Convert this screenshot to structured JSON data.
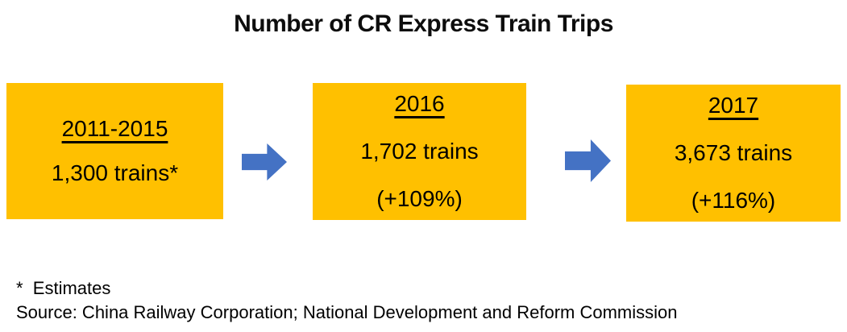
{
  "title": "Number of CR Express Train Trips",
  "boxes": [
    {
      "period": "2011-2015",
      "value": "1,300 trains*",
      "growth": ""
    },
    {
      "period": "2016",
      "value": "1,702 trains",
      "growth": "(+109%)"
    },
    {
      "period": "2017",
      "value": "3,673 trains",
      "growth": "(+116%)"
    }
  ],
  "icons": {
    "arrow": "right-arrow"
  },
  "footnote": "*  Estimates",
  "source": "Source: China Railway Corporation; National Development and Reform Commission",
  "colors": {
    "box_fill": "#FFC000",
    "arrow": "#4472C4",
    "text": "#000000",
    "background": "#FFFFFF"
  }
}
